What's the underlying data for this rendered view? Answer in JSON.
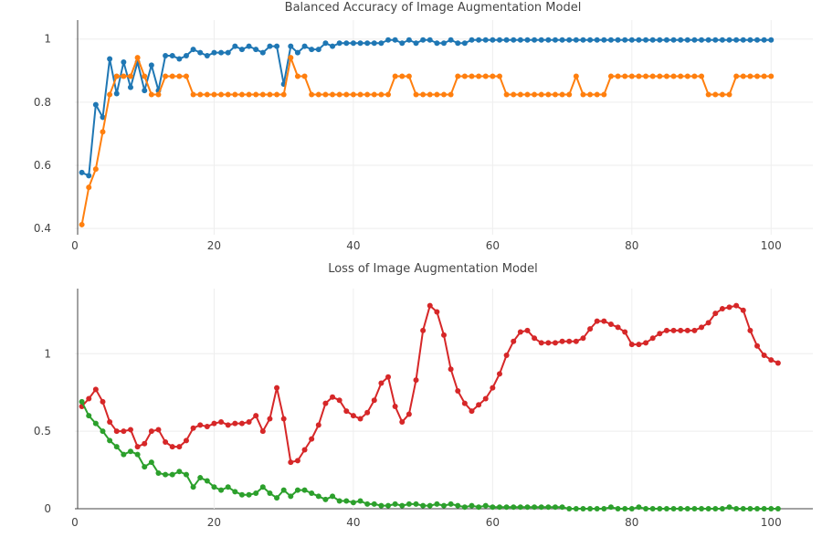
{
  "chart_data": [
    {
      "type": "line",
      "title": "Balanced Accuracy of Image Augmentation Model",
      "xlabel": "",
      "ylabel": "",
      "xlim": [
        0,
        106
      ],
      "ylim": [
        0.38,
        1.06
      ],
      "xticks": [
        0,
        20,
        40,
        60,
        80,
        100
      ],
      "yticks": [
        0.4,
        0.6,
        0.8,
        1
      ],
      "ytick_labels": [
        "0.4",
        "0.6",
        "0.8",
        "1"
      ],
      "grid": true,
      "legend": "none",
      "series": [
        {
          "color": "#1f77b4",
          "values": [
            0.577,
            0.567,
            0.792,
            0.752,
            0.937,
            0.827,
            0.927,
            0.847,
            0.927,
            0.837,
            0.917,
            0.837,
            0.947,
            0.947,
            0.937,
            0.947,
            0.967,
            0.957,
            0.947,
            0.957,
            0.957,
            0.957,
            0.977,
            0.967,
            0.977,
            0.967,
            0.957,
            0.977,
            0.977,
            0.857,
            0.977,
            0.957,
            0.977,
            0.967,
            0.967,
            0.987,
            0.977,
            0.987,
            0.987,
            0.987,
            0.987,
            0.987,
            0.987,
            0.987,
            0.997,
            0.997,
            0.987,
            0.997,
            0.987,
            0.997,
            0.997,
            0.987,
            0.987,
            0.997,
            0.987,
            0.987,
            0.997,
            0.997,
            0.997,
            0.997,
            0.997,
            0.997,
            0.997,
            0.997,
            0.997,
            0.997,
            0.997,
            0.997,
            0.997,
            0.997,
            0.997,
            0.997,
            0.997,
            0.997,
            0.997,
            0.997,
            0.997,
            0.997,
            0.997,
            0.997,
            0.997,
            0.997,
            0.997,
            0.997,
            0.997,
            0.997,
            0.997,
            0.997,
            0.997,
            0.997,
            0.997,
            0.997,
            0.997,
            0.997,
            0.997,
            0.997,
            0.997,
            0.997,
            0.997,
            0.997
          ]
        },
        {
          "color": "#ff7f0e",
          "values": [
            0.412,
            0.53,
            0.588,
            0.706,
            0.824,
            0.882,
            0.882,
            0.882,
            0.941,
            0.882,
            0.824,
            0.824,
            0.882,
            0.882,
            0.882,
            0.882,
            0.824,
            0.824,
            0.824,
            0.824,
            0.824,
            0.824,
            0.824,
            0.824,
            0.824,
            0.824,
            0.824,
            0.824,
            0.824,
            0.824,
            0.941,
            0.882,
            0.882,
            0.824,
            0.824,
            0.824,
            0.824,
            0.824,
            0.824,
            0.824,
            0.824,
            0.824,
            0.824,
            0.824,
            0.824,
            0.882,
            0.882,
            0.882,
            0.824,
            0.824,
            0.824,
            0.824,
            0.824,
            0.824,
            0.882,
            0.882,
            0.882,
            0.882,
            0.882,
            0.882,
            0.882,
            0.824,
            0.824,
            0.824,
            0.824,
            0.824,
            0.824,
            0.824,
            0.824,
            0.824,
            0.824,
            0.882,
            0.824,
            0.824,
            0.824,
            0.824,
            0.882,
            0.882,
            0.882,
            0.882,
            0.882,
            0.882,
            0.882,
            0.882,
            0.882,
            0.882,
            0.882,
            0.882,
            0.882,
            0.882,
            0.824,
            0.824,
            0.824,
            0.824,
            0.882,
            0.882,
            0.882,
            0.882,
            0.882,
            0.882
          ]
        }
      ]
    },
    {
      "type": "line",
      "title": "Loss of Image Augmentation Model",
      "xlabel": "",
      "ylabel": "",
      "xlim": [
        0,
        106
      ],
      "ylim": [
        0,
        1.42
      ],
      "xticks": [
        0,
        20,
        40,
        60,
        80,
        100
      ],
      "yticks": [
        0,
        0.5,
        1
      ],
      "ytick_labels": [
        "0",
        "0.5",
        "1"
      ],
      "grid": true,
      "legend": "none",
      "series": [
        {
          "color": "#d62728",
          "values": [
            0.66,
            0.71,
            0.77,
            0.69,
            0.56,
            0.5,
            0.5,
            0.51,
            0.4,
            0.42,
            0.5,
            0.51,
            0.43,
            0.4,
            0.4,
            0.44,
            0.52,
            0.54,
            0.53,
            0.55,
            0.56,
            0.54,
            0.55,
            0.55,
            0.56,
            0.6,
            0.5,
            0.58,
            0.78,
            0.58,
            0.3,
            0.31,
            0.38,
            0.45,
            0.54,
            0.68,
            0.72,
            0.7,
            0.63,
            0.6,
            0.58,
            0.62,
            0.7,
            0.81,
            0.85,
            0.66,
            0.56,
            0.61,
            0.83,
            1.15,
            1.31,
            1.27,
            1.12,
            0.9,
            0.76,
            0.68,
            0.63,
            0.67,
            0.71,
            0.78,
            0.87,
            0.99,
            1.08,
            1.14,
            1.15,
            1.1,
            1.07,
            1.07,
            1.07,
            1.08,
            1.08,
            1.08,
            1.1,
            1.16,
            1.21,
            1.21,
            1.19,
            1.17,
            1.14,
            1.06,
            1.06,
            1.07,
            1.1,
            1.13,
            1.15,
            1.15,
            1.15,
            1.15,
            1.15,
            1.17,
            1.2,
            1.26,
            1.29,
            1.3,
            1.31,
            1.28,
            1.15,
            1.05,
            0.99,
            0.96,
            0.94
          ]
        },
        {
          "color": "#2ca02c",
          "values": [
            0.69,
            0.6,
            0.55,
            0.5,
            0.44,
            0.4,
            0.35,
            0.37,
            0.35,
            0.27,
            0.3,
            0.23,
            0.22,
            0.22,
            0.24,
            0.22,
            0.14,
            0.2,
            0.18,
            0.14,
            0.12,
            0.14,
            0.11,
            0.09,
            0.09,
            0.1,
            0.14,
            0.1,
            0.07,
            0.12,
            0.08,
            0.12,
            0.12,
            0.1,
            0.08,
            0.06,
            0.08,
            0.05,
            0.05,
            0.04,
            0.05,
            0.03,
            0.03,
            0.02,
            0.02,
            0.03,
            0.02,
            0.03,
            0.03,
            0.02,
            0.02,
            0.03,
            0.02,
            0.03,
            0.02,
            0.01,
            0.02,
            0.01,
            0.02,
            0.01,
            0.01,
            0.01,
            0.01,
            0.01,
            0.01,
            0.01,
            0.01,
            0.01,
            0.01,
            0.01,
            0.0,
            0.0,
            0.0,
            0.0,
            0.0,
            0.0,
            0.01,
            0.0,
            0.0,
            0.0,
            0.01,
            0.0,
            0.0,
            0.0,
            0.0,
            0.0,
            0.0,
            0.0,
            0.0,
            0.0,
            0.0,
            0.0,
            0.0,
            0.01,
            0.0,
            0.0,
            0.0,
            0.0,
            0.0,
            0.0,
            0.0
          ]
        }
      ]
    }
  ]
}
